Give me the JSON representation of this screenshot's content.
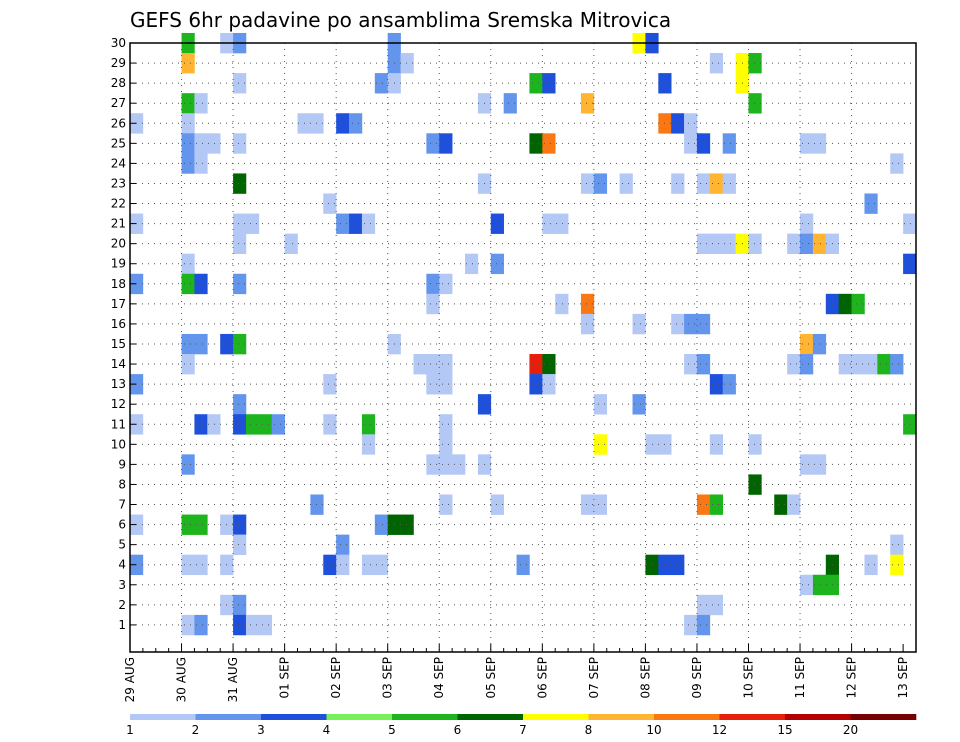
{
  "chart_data": {
    "type": "heatmap",
    "title": "GEFS 6hr padavine po ansamblima Sremska Mitrovica",
    "y_members": [
      1,
      2,
      3,
      4,
      5,
      6,
      7,
      8,
      9,
      10,
      11,
      12,
      13,
      14,
      15,
      16,
      17,
      18,
      19,
      20,
      21,
      22,
      23,
      24,
      25,
      26,
      27,
      28,
      29,
      30
    ],
    "x_tick_labels": [
      "29 AUG",
      "30 AUG",
      "31 AUG",
      "01 SEP",
      "02 SEP",
      "03 SEP",
      "04 SEP",
      "05 SEP",
      "06 SEP",
      "07 SEP",
      "08 SEP",
      "09 SEP",
      "10 SEP",
      "11 SEP",
      "12 SEP",
      "13 SEP"
    ],
    "time_steps_per_day": 4,
    "time_range_steps": [
      0,
      61
    ],
    "grid": true,
    "legend": {
      "placement": "bottom",
      "labels": [
        "1",
        "2",
        "3",
        "4",
        "5",
        "6",
        "7",
        "8",
        "10",
        "12",
        "15",
        "20"
      ],
      "colors": [
        "#b4c8f5",
        "#6495ed",
        "#1e50dc",
        "#78f05a",
        "#1eb41e",
        "#006400",
        "#ffff00",
        "#ffb432",
        "#fa7814",
        "#e61e0a",
        "#b40000",
        "#780000"
      ]
    },
    "cells_format": "[member, time_step, precip_class]",
    "cells": [
      [
        30,
        4,
        5
      ],
      [
        30,
        7,
        1
      ],
      [
        30,
        8,
        2
      ],
      [
        30,
        20,
        2
      ],
      [
        30,
        39,
        7
      ],
      [
        30,
        40,
        3
      ],
      [
        29,
        4,
        8
      ],
      [
        29,
        20,
        2
      ],
      [
        29,
        21,
        1
      ],
      [
        29,
        45,
        1
      ],
      [
        29,
        47,
        7
      ],
      [
        29,
        48,
        5
      ],
      [
        28,
        8,
        1
      ],
      [
        28,
        19,
        2
      ],
      [
        28,
        20,
        1
      ],
      [
        28,
        31,
        5
      ],
      [
        28,
        32,
        3
      ],
      [
        28,
        41,
        3
      ],
      [
        28,
        47,
        7
      ],
      [
        27,
        4,
        5
      ],
      [
        27,
        5,
        1
      ],
      [
        27,
        27,
        1
      ],
      [
        27,
        29,
        2
      ],
      [
        27,
        35,
        8
      ],
      [
        27,
        48,
        5
      ],
      [
        26,
        0,
        1
      ],
      [
        26,
        4,
        1
      ],
      [
        26,
        13,
        1
      ],
      [
        26,
        14,
        1
      ],
      [
        26,
        16,
        3
      ],
      [
        26,
        17,
        2
      ],
      [
        26,
        41,
        9
      ],
      [
        26,
        42,
        3
      ],
      [
        26,
        43,
        1
      ],
      [
        25,
        4,
        2
      ],
      [
        25,
        5,
        1
      ],
      [
        25,
        6,
        1
      ],
      [
        25,
        8,
        1
      ],
      [
        25,
        23,
        2
      ],
      [
        25,
        24,
        3
      ],
      [
        25,
        31,
        6
      ],
      [
        25,
        32,
        9
      ],
      [
        25,
        43,
        1
      ],
      [
        25,
        44,
        3
      ],
      [
        25,
        46,
        2
      ],
      [
        25,
        52,
        1
      ],
      [
        25,
        53,
        1
      ],
      [
        24,
        4,
        2
      ],
      [
        24,
        5,
        1
      ],
      [
        24,
        59,
        1
      ],
      [
        23,
        8,
        6
      ],
      [
        23,
        27,
        1
      ],
      [
        23,
        35,
        1
      ],
      [
        23,
        36,
        2
      ],
      [
        23,
        38,
        1
      ],
      [
        23,
        42,
        1
      ],
      [
        23,
        44,
        1
      ],
      [
        23,
        45,
        8
      ],
      [
        23,
        46,
        1
      ],
      [
        22,
        15,
        1
      ],
      [
        22,
        57,
        2
      ],
      [
        21,
        0,
        1
      ],
      [
        21,
        8,
        1
      ],
      [
        21,
        9,
        1
      ],
      [
        21,
        16,
        2
      ],
      [
        21,
        17,
        3
      ],
      [
        21,
        18,
        1
      ],
      [
        21,
        28,
        3
      ],
      [
        21,
        32,
        1
      ],
      [
        21,
        33,
        1
      ],
      [
        21,
        52,
        1
      ],
      [
        21,
        60,
        1
      ],
      [
        20,
        8,
        1
      ],
      [
        20,
        12,
        1
      ],
      [
        20,
        44,
        1
      ],
      [
        20,
        45,
        1
      ],
      [
        20,
        46,
        1
      ],
      [
        20,
        47,
        7
      ],
      [
        20,
        48,
        1
      ],
      [
        20,
        51,
        1
      ],
      [
        20,
        52,
        2
      ],
      [
        20,
        53,
        8
      ],
      [
        20,
        54,
        1
      ],
      [
        19,
        4,
        1
      ],
      [
        19,
        26,
        1
      ],
      [
        19,
        28,
        2
      ],
      [
        19,
        60,
        3
      ],
      [
        18,
        0,
        2
      ],
      [
        18,
        4,
        5
      ],
      [
        18,
        5,
        3
      ],
      [
        18,
        8,
        2
      ],
      [
        18,
        23,
        2
      ],
      [
        18,
        24,
        1
      ],
      [
        17,
        23,
        1
      ],
      [
        17,
        33,
        1
      ],
      [
        17,
        35,
        9
      ],
      [
        17,
        54,
        3
      ],
      [
        17,
        55,
        6
      ],
      [
        17,
        56,
        5
      ],
      [
        16,
        35,
        1
      ],
      [
        16,
        39,
        1
      ],
      [
        16,
        42,
        1
      ],
      [
        16,
        43,
        2
      ],
      [
        16,
        44,
        2
      ],
      [
        15,
        4,
        2
      ],
      [
        15,
        5,
        2
      ],
      [
        15,
        7,
        3
      ],
      [
        15,
        8,
        5
      ],
      [
        15,
        20,
        1
      ],
      [
        15,
        52,
        8
      ],
      [
        15,
        53,
        2
      ],
      [
        14,
        4,
        1
      ],
      [
        14,
        22,
        1
      ],
      [
        14,
        23,
        1
      ],
      [
        14,
        24,
        1
      ],
      [
        14,
        31,
        10
      ],
      [
        14,
        32,
        6
      ],
      [
        14,
        43,
        1
      ],
      [
        14,
        44,
        2
      ],
      [
        14,
        51,
        1
      ],
      [
        14,
        52,
        2
      ],
      [
        14,
        55,
        1
      ],
      [
        14,
        56,
        1
      ],
      [
        14,
        57,
        1
      ],
      [
        14,
        58,
        5
      ],
      [
        14,
        59,
        2
      ],
      [
        13,
        0,
        2
      ],
      [
        13,
        15,
        1
      ],
      [
        13,
        23,
        1
      ],
      [
        13,
        24,
        1
      ],
      [
        13,
        31,
        3
      ],
      [
        13,
        32,
        1
      ],
      [
        13,
        45,
        3
      ],
      [
        13,
        46,
        2
      ],
      [
        12,
        8,
        2
      ],
      [
        12,
        27,
        3
      ],
      [
        12,
        36,
        1
      ],
      [
        12,
        39,
        2
      ],
      [
        11,
        0,
        1
      ],
      [
        11,
        5,
        3
      ],
      [
        11,
        6,
        1
      ],
      [
        11,
        8,
        3
      ],
      [
        11,
        9,
        5
      ],
      [
        11,
        10,
        5
      ],
      [
        11,
        11,
        2
      ],
      [
        11,
        15,
        1
      ],
      [
        11,
        18,
        5
      ],
      [
        11,
        24,
        1
      ],
      [
        11,
        60,
        5
      ],
      [
        10,
        18,
        1
      ],
      [
        10,
        24,
        1
      ],
      [
        10,
        36,
        7
      ],
      [
        10,
        40,
        1
      ],
      [
        10,
        41,
        1
      ],
      [
        10,
        45,
        1
      ],
      [
        10,
        48,
        1
      ],
      [
        9,
        4,
        2
      ],
      [
        9,
        23,
        1
      ],
      [
        9,
        24,
        1
      ],
      [
        9,
        25,
        1
      ],
      [
        9,
        27,
        1
      ],
      [
        9,
        52,
        1
      ],
      [
        9,
        53,
        1
      ],
      [
        8,
        48,
        6
      ],
      [
        7,
        14,
        2
      ],
      [
        7,
        24,
        1
      ],
      [
        7,
        28,
        1
      ],
      [
        7,
        35,
        1
      ],
      [
        7,
        36,
        1
      ],
      [
        7,
        44,
        9
      ],
      [
        7,
        45,
        5
      ],
      [
        7,
        50,
        6
      ],
      [
        7,
        51,
        1
      ],
      [
        6,
        0,
        1
      ],
      [
        6,
        4,
        5
      ],
      [
        6,
        5,
        5
      ],
      [
        6,
        7,
        1
      ],
      [
        6,
        8,
        3
      ],
      [
        6,
        19,
        2
      ],
      [
        6,
        20,
        6
      ],
      [
        6,
        21,
        6
      ],
      [
        5,
        8,
        1
      ],
      [
        5,
        16,
        2
      ],
      [
        5,
        59,
        1
      ],
      [
        4,
        0,
        2
      ],
      [
        4,
        4,
        1
      ],
      [
        4,
        5,
        1
      ],
      [
        4,
        7,
        1
      ],
      [
        4,
        15,
        3
      ],
      [
        4,
        16,
        1
      ],
      [
        4,
        18,
        1
      ],
      [
        4,
        19,
        1
      ],
      [
        4,
        30,
        2
      ],
      [
        4,
        40,
        6
      ],
      [
        4,
        41,
        3
      ],
      [
        4,
        42,
        3
      ],
      [
        4,
        54,
        6
      ],
      [
        4,
        57,
        1
      ],
      [
        4,
        59,
        7
      ],
      [
        3,
        52,
        1
      ],
      [
        3,
        53,
        5
      ],
      [
        3,
        54,
        5
      ],
      [
        2,
        7,
        1
      ],
      [
        2,
        8,
        2
      ],
      [
        2,
        44,
        1
      ],
      [
        2,
        45,
        1
      ],
      [
        1,
        4,
        1
      ],
      [
        1,
        5,
        2
      ],
      [
        1,
        8,
        3
      ],
      [
        1,
        9,
        1
      ],
      [
        1,
        10,
        1
      ],
      [
        1,
        43,
        1
      ],
      [
        1,
        44,
        2
      ]
    ]
  }
}
